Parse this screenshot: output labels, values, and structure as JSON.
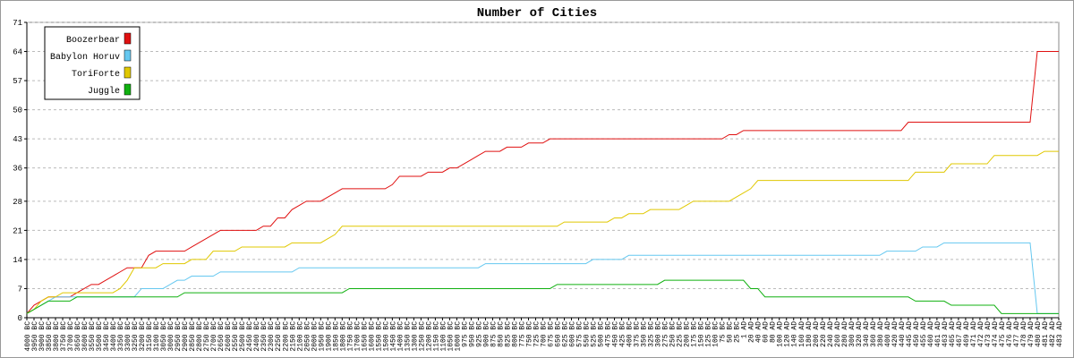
{
  "chart_data": {
    "type": "line",
    "title": "Number of Cities",
    "categories": [
      "4000 BC",
      "3950 BC",
      "3900 BC",
      "3850 BC",
      "3800 BC",
      "3750 BC",
      "3700 BC",
      "3650 BC",
      "3600 BC",
      "3550 BC",
      "3500 BC",
      "3450 BC",
      "3400 BC",
      "3350 BC",
      "3300 BC",
      "3250 BC",
      "3200 BC",
      "3150 BC",
      "3100 BC",
      "3050 BC",
      "3000 BC",
      "2950 BC",
      "2900 BC",
      "2850 BC",
      "2800 BC",
      "2750 BC",
      "2700 BC",
      "2650 BC",
      "2600 BC",
      "2550 BC",
      "2500 BC",
      "2450 BC",
      "2400 BC",
      "2350 BC",
      "2300 BC",
      "2250 BC",
      "2200 BC",
      "2150 BC",
      "2100 BC",
      "2050 BC",
      "2000 BC",
      "1950 BC",
      "1900 BC",
      "1850 BC",
      "1800 BC",
      "1750 BC",
      "1700 BC",
      "1650 BC",
      "1600 BC",
      "1550 BC",
      "1500 BC",
      "1450 BC",
      "1400 BC",
      "1350 BC",
      "1300 BC",
      "1250 BC",
      "1200 BC",
      "1150 BC",
      "1100 BC",
      "1050 BC",
      "1000 BC",
      "975 BC",
      "950 BC",
      "925 BC",
      "900 BC",
      "875 BC",
      "850 BC",
      "825 BC",
      "800 BC",
      "775 BC",
      "750 BC",
      "725 BC",
      "700 BC",
      "675 BC",
      "650 BC",
      "625 BC",
      "600 BC",
      "575 BC",
      "550 BC",
      "525 BC",
      "500 BC",
      "475 BC",
      "450 BC",
      "425 BC",
      "400 BC",
      "375 BC",
      "350 BC",
      "325 BC",
      "300 BC",
      "275 BC",
      "250 BC",
      "225 BC",
      "200 BC",
      "175 BC",
      "150 BC",
      "125 BC",
      "100 BC",
      "75 BC",
      "50 BC",
      "25 BC",
      "1 AD",
      "20 AD",
      "40 AD",
      "60 AD",
      "80 AD",
      "100 AD",
      "120 AD",
      "140 AD",
      "160 AD",
      "180 AD",
      "200 AD",
      "220 AD",
      "240 AD",
      "260 AD",
      "280 AD",
      "300 AD",
      "320 AD",
      "340 AD",
      "360 AD",
      "380 AD",
      "400 AD",
      "420 AD",
      "440 AD",
      "445 AD",
      "450 AD",
      "455 AD",
      "460 AD",
      "461 AD",
      "463 AD",
      "465 AD",
      "467 AD",
      "469 AD",
      "471 AD",
      "472 AD",
      "473 AD",
      "474 AD",
      "475 AD",
      "476 AD",
      "477 AD",
      "478 AD",
      "479 AD",
      "480 AD",
      "481 AD",
      "482 AD",
      "483 AD"
    ],
    "series": [
      {
        "name": "Boozerbear",
        "color": "#e01010",
        "values": [
          1,
          3,
          4,
          5,
          5,
          5,
          5,
          6,
          7,
          8,
          8,
          9,
          10,
          11,
          12,
          12,
          12,
          15,
          16,
          16,
          16,
          16,
          16,
          17,
          18,
          19,
          20,
          21,
          21,
          21,
          21,
          21,
          21,
          22,
          22,
          24,
          24,
          26,
          27,
          28,
          28,
          28,
          29,
          30,
          31,
          31,
          31,
          31,
          31,
          31,
          31,
          32,
          34,
          34,
          34,
          34,
          35,
          35,
          35,
          36,
          36,
          37,
          38,
          39,
          40,
          40,
          40,
          41,
          41,
          41,
          42,
          42,
          42,
          43,
          43,
          43,
          43,
          43,
          43,
          43,
          43,
          43,
          43,
          43,
          43,
          43,
          43,
          43,
          43,
          43,
          43,
          43,
          43,
          43,
          43,
          43,
          43,
          43,
          44,
          44,
          45,
          45,
          45,
          45,
          45,
          45,
          45,
          45,
          45,
          45,
          45,
          45,
          45,
          45,
          45,
          45,
          45,
          45,
          45,
          45,
          45,
          45,
          45,
          47,
          47,
          47,
          47,
          47,
          47,
          47,
          47,
          47,
          47,
          47,
          47,
          47,
          47,
          47,
          47,
          47,
          47,
          64,
          64,
          64,
          64
        ]
      },
      {
        "name": "Babylon Horuv",
        "color": "#66c8f0",
        "values": [
          1,
          2,
          3,
          4,
          5,
          5,
          5,
          5,
          5,
          5,
          5,
          5,
          5,
          5,
          5,
          5,
          7,
          7,
          7,
          7,
          8,
          9,
          9,
          10,
          10,
          10,
          10,
          11,
          11,
          11,
          11,
          11,
          11,
          11,
          11,
          11,
          11,
          11,
          12,
          12,
          12,
          12,
          12,
          12,
          12,
          12,
          12,
          12,
          12,
          12,
          12,
          12,
          12,
          12,
          12,
          12,
          12,
          12,
          12,
          12,
          12,
          12,
          12,
          12,
          13,
          13,
          13,
          13,
          13,
          13,
          13,
          13,
          13,
          13,
          13,
          13,
          13,
          13,
          13,
          14,
          14,
          14,
          14,
          14,
          15,
          15,
          15,
          15,
          15,
          15,
          15,
          15,
          15,
          15,
          15,
          15,
          15,
          15,
          15,
          15,
          15,
          15,
          15,
          15,
          15,
          15,
          15,
          15,
          15,
          15,
          15,
          15,
          15,
          15,
          15,
          15,
          15,
          15,
          15,
          15,
          16,
          16,
          16,
          16,
          16,
          17,
          17,
          17,
          18,
          18,
          18,
          18,
          18,
          18,
          18,
          18,
          18,
          18,
          18,
          18,
          18,
          1,
          1,
          1,
          1
        ]
      },
      {
        "name": "ToriForte",
        "color": "#e0c800",
        "values": [
          1,
          2,
          4,
          5,
          5,
          6,
          6,
          6,
          6,
          6,
          6,
          6,
          6,
          7,
          9,
          12,
          12,
          12,
          12,
          13,
          13,
          13,
          13,
          14,
          14,
          14,
          16,
          16,
          16,
          16,
          17,
          17,
          17,
          17,
          17,
          17,
          17,
          18,
          18,
          18,
          18,
          18,
          19,
          20,
          22,
          22,
          22,
          22,
          22,
          22,
          22,
          22,
          22,
          22,
          22,
          22,
          22,
          22,
          22,
          22,
          22,
          22,
          22,
          22,
          22,
          22,
          22,
          22,
          22,
          22,
          22,
          22,
          22,
          22,
          22,
          23,
          23,
          23,
          23,
          23,
          23,
          23,
          24,
          24,
          25,
          25,
          25,
          26,
          26,
          26,
          26,
          26,
          27,
          28,
          28,
          28,
          28,
          28,
          28,
          29,
          30,
          31,
          33,
          33,
          33,
          33,
          33,
          33,
          33,
          33,
          33,
          33,
          33,
          33,
          33,
          33,
          33,
          33,
          33,
          33,
          33,
          33,
          33,
          33,
          35,
          35,
          35,
          35,
          35,
          37,
          37,
          37,
          37,
          37,
          37,
          39,
          39,
          39,
          39,
          39,
          39,
          39,
          40,
          40,
          40
        ]
      },
      {
        "name": "Juggle",
        "color": "#10b010",
        "values": [
          1,
          2,
          3,
          4,
          4,
          4,
          4,
          5,
          5,
          5,
          5,
          5,
          5,
          5,
          5,
          5,
          5,
          5,
          5,
          5,
          5,
          5,
          6,
          6,
          6,
          6,
          6,
          6,
          6,
          6,
          6,
          6,
          6,
          6,
          6,
          6,
          6,
          6,
          6,
          6,
          6,
          6,
          6,
          6,
          6,
          7,
          7,
          7,
          7,
          7,
          7,
          7,
          7,
          7,
          7,
          7,
          7,
          7,
          7,
          7,
          7,
          7,
          7,
          7,
          7,
          7,
          7,
          7,
          7,
          7,
          7,
          7,
          7,
          7,
          8,
          8,
          8,
          8,
          8,
          8,
          8,
          8,
          8,
          8,
          8,
          8,
          8,
          8,
          8,
          9,
          9,
          9,
          9,
          9,
          9,
          9,
          9,
          9,
          9,
          9,
          9,
          7,
          7,
          5,
          5,
          5,
          5,
          5,
          5,
          5,
          5,
          5,
          5,
          5,
          5,
          5,
          5,
          5,
          5,
          5,
          5,
          5,
          5,
          5,
          4,
          4,
          4,
          4,
          4,
          3,
          3,
          3,
          3,
          3,
          3,
          3,
          1,
          1,
          1,
          1,
          1,
          1,
          1,
          1,
          1
        ]
      }
    ],
    "ylim": [
      0,
      71
    ],
    "yticks": [
      0,
      7,
      14,
      21,
      28,
      36,
      43,
      50,
      57,
      64,
      71
    ],
    "grid": true,
    "legend": "upper left"
  }
}
